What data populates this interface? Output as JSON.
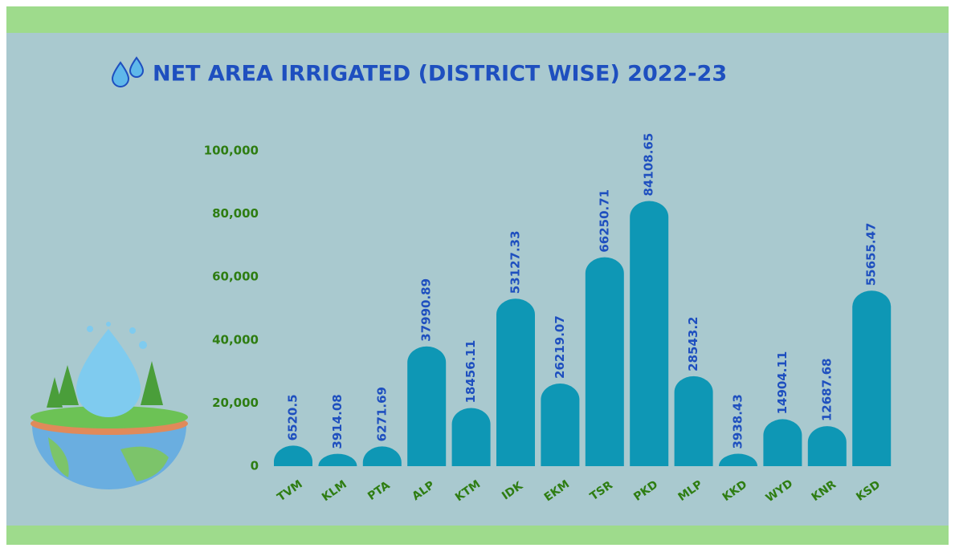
{
  "chart_data": {
    "type": "bar",
    "title": "NET AREA IRRIGATED (DISTRICT WISE)  2022-23",
    "categories": [
      "TVM",
      "KLM",
      "PTA",
      "ALP",
      "KTM",
      "IDK",
      "EKM",
      "TSR",
      "PKD",
      "MLP",
      "KKD",
      "WYD",
      "KNR",
      "KSD"
    ],
    "values": [
      6520.5,
      3914.08,
      6271.69,
      37990.89,
      18456.11,
      53127.33,
      26219.07,
      66250.71,
      84108.65,
      28543.2,
      3938.43,
      14904.11,
      12687.68,
      55655.47
    ],
    "color": "#0e97b5",
    "ylim": [
      0,
      100000
    ],
    "yticks": [
      0,
      {
        "value": 20000,
        "label": "20,000"
      },
      {
        "value": 40000,
        "label": "40,000"
      },
      {
        "value": 60000,
        "label": "60,000"
      },
      {
        "value": 80000,
        "label": "80,000"
      },
      {
        "value": 100000,
        "label": "100,000"
      }
    ]
  }
}
